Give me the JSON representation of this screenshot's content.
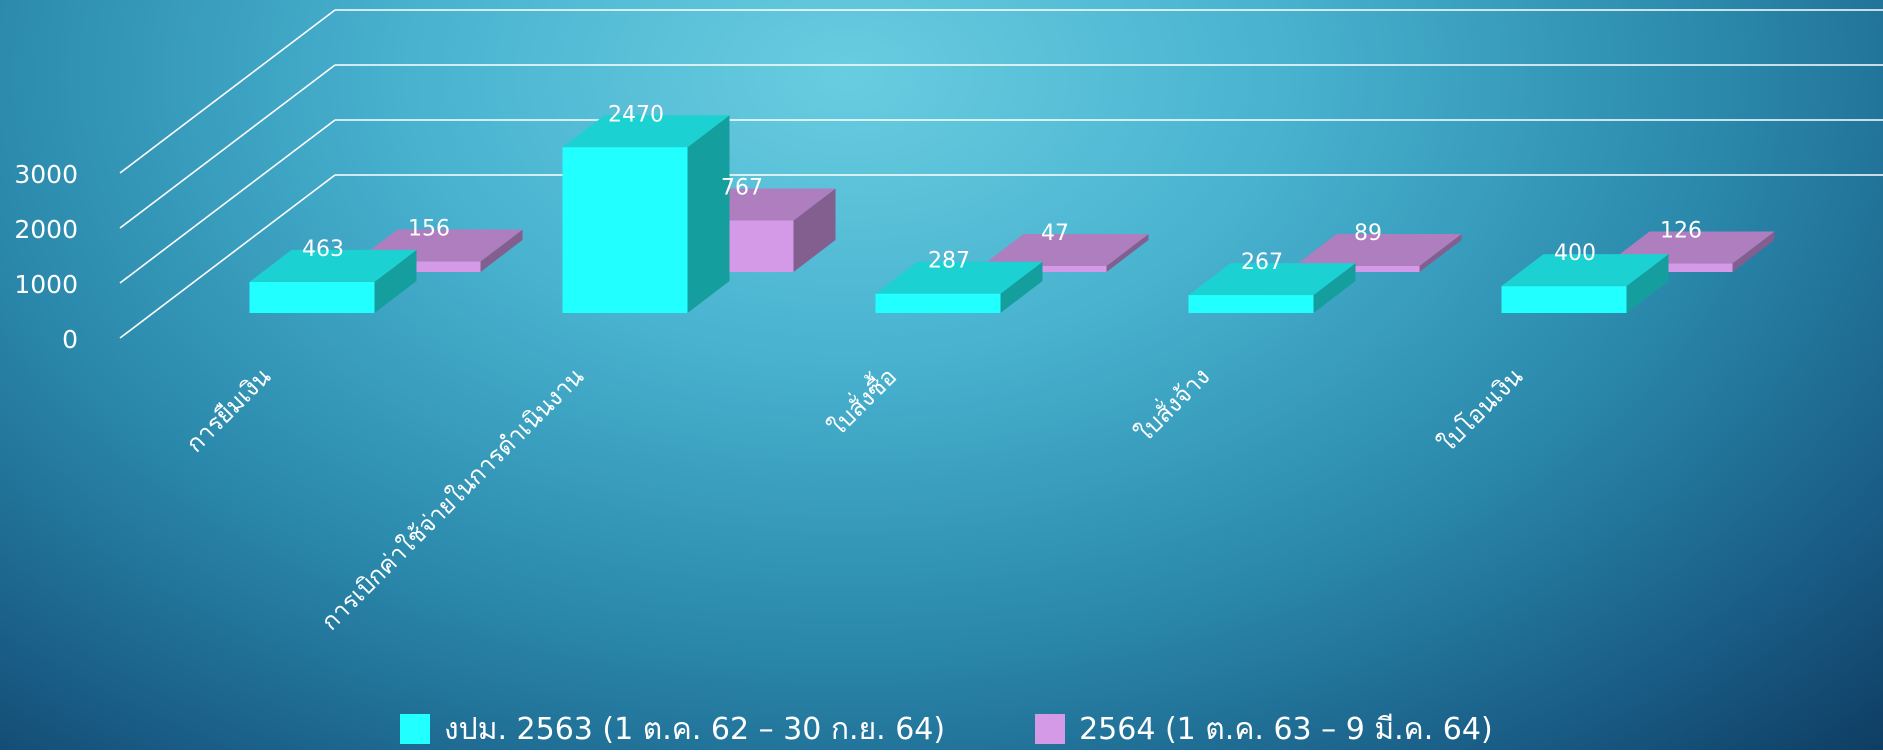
{
  "chart_data": {
    "type": "bar",
    "style": "3d-clustered-column",
    "categories": [
      "การยืมเงิน",
      "การเบิกค่าใช้จ่ายในการดำเนินงาน",
      "ใบสั่งซื้อ",
      "ใบสั่งจ้าง",
      "ใบโอนเงิน"
    ],
    "series": [
      {
        "name": "งปม. 2563 (1 ต.ค. 62 – 30 ก.ย. 64)",
        "values": [
          463,
          2470,
          287,
          267,
          400
        ],
        "color": "#22ffff"
      },
      {
        "name": "2564 (1 ต.ค. 63 – 9 มี.ค. 64)",
        "values": [
          156,
          767,
          47,
          89,
          126
        ],
        "color": "#d49ae8"
      }
    ],
    "y_ticks": [
      "0",
      "1000",
      "2000",
      "3000"
    ],
    "ylim": [
      0,
      3000
    ],
    "grid": true,
    "legend_position": "bottom"
  }
}
